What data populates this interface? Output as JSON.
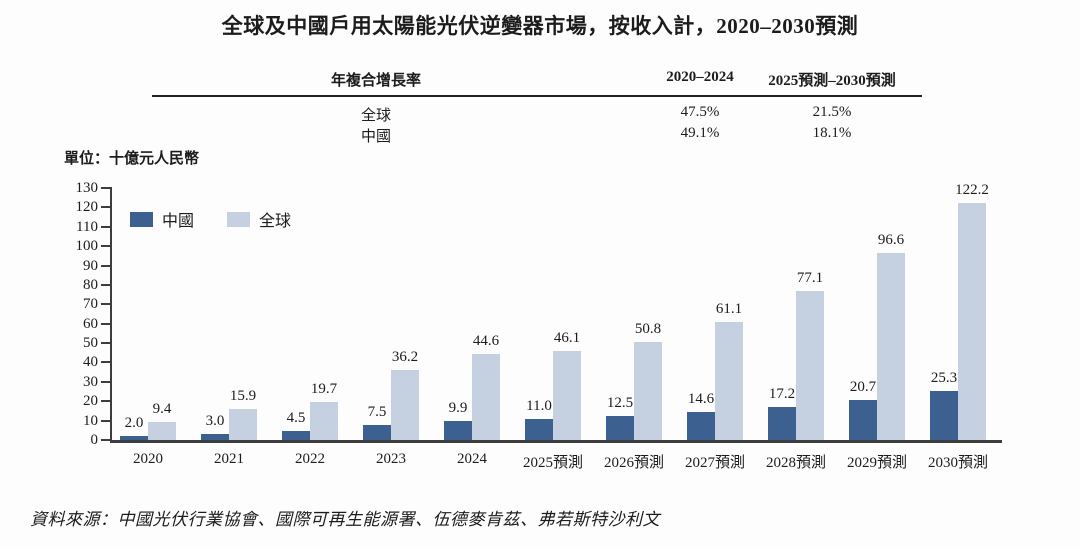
{
  "title": "全球及中國戶用太陽能光伏逆變器市場，按收入計，2020–2030預測",
  "unit_label": "單位：十億元人民幣",
  "source": "資料來源：中國光伏行業協會、國際可再生能源署、伍德麥肯茲、弗若斯特沙利文",
  "table": {
    "header": {
      "label": "年複合增長率",
      "col1": "2020–2024",
      "col2": "2025預測–2030預測"
    },
    "rows": [
      {
        "name": "全球",
        "cagr_2020_2024": "47.5%",
        "cagr_2025_2030": "21.5%"
      },
      {
        "name": "中國",
        "cagr_2020_2024": "49.1%",
        "cagr_2025_2030": "18.1%"
      }
    ]
  },
  "colors": {
    "china_bar": "#3C6191",
    "global_bar": "#C5D1E1",
    "axis": "#3d3d3d",
    "text": "#1c1c1c"
  },
  "chart_data": {
    "type": "bar",
    "title": "全球及中國戶用太陽能光伏逆變器市場，按收入計，2020–2030預測",
    "xlabel": "",
    "ylabel": "單位：十億元人民幣",
    "ylim": [
      0,
      130
    ],
    "yticks": [
      0,
      10,
      20,
      30,
      40,
      50,
      60,
      70,
      80,
      90,
      100,
      110,
      120,
      130
    ],
    "grid": false,
    "legend_position": "top-left-inside",
    "categories": [
      "2020",
      "2021",
      "2022",
      "2023",
      "2024",
      "2025預測",
      "2026預測",
      "2027預測",
      "2028預測",
      "2029預測",
      "2030預測"
    ],
    "series": [
      {
        "key": "china",
        "name": "中國",
        "color": "#3C6191",
        "values": [
          2.0,
          3.0,
          4.5,
          7.5,
          9.9,
          11.0,
          12.5,
          14.6,
          17.2,
          20.7,
          25.3
        ]
      },
      {
        "key": "global",
        "name": "全球",
        "color": "#C5D1E1",
        "values": [
          9.4,
          15.9,
          19.7,
          36.2,
          44.6,
          46.1,
          50.8,
          61.1,
          77.1,
          96.6,
          122.2
        ]
      }
    ]
  }
}
